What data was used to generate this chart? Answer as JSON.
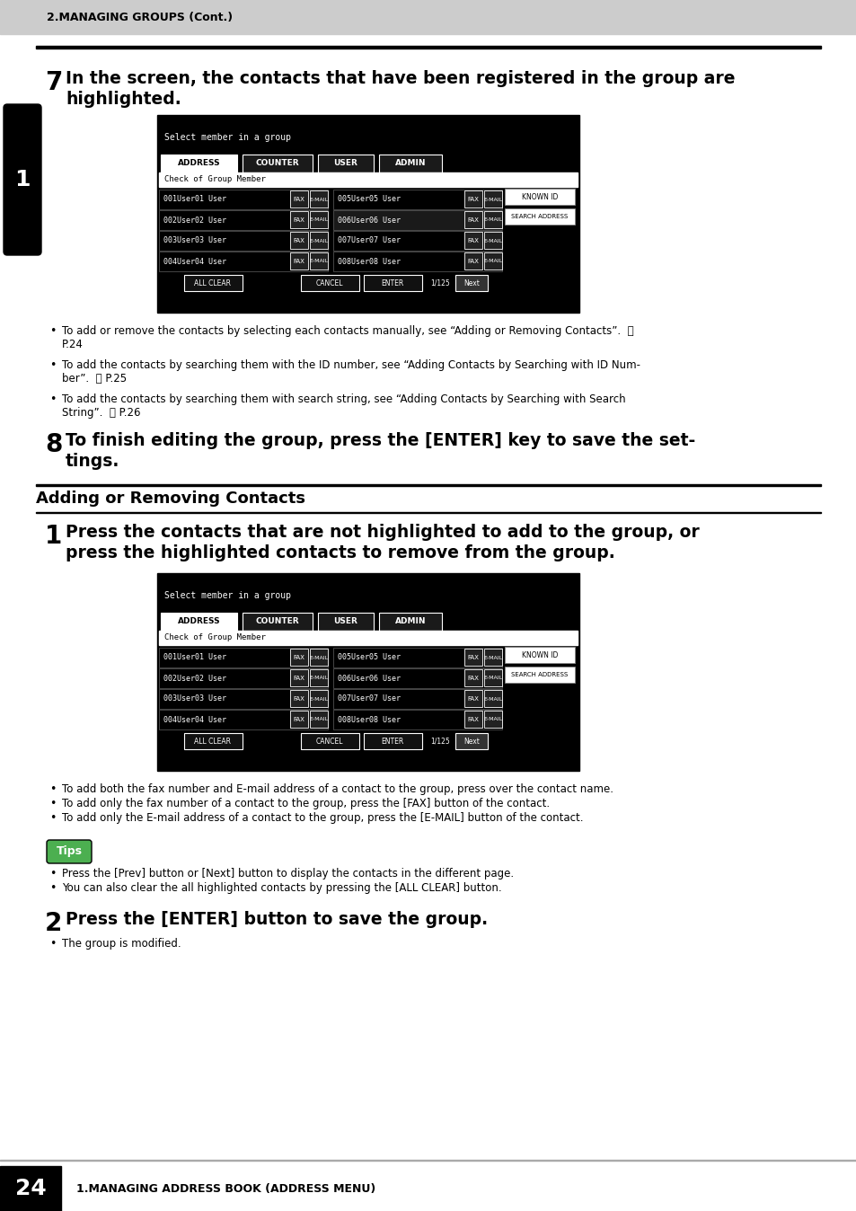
{
  "page_bg": "#ffffff",
  "header_bg": "#c8c8c8",
  "header_text": "2.MANAGING GROUPS (Cont.)",
  "footer_text": "24",
  "footer_subtext": "1.MANAGING ADDRESS BOOK (ADDRESS MENU)",
  "left_tab_text": "1",
  "step7_number": "7",
  "step7_line1": "In the screen, the contacts that have been registered in the group are",
  "step7_line2": "highlighted.",
  "step7_bullets": [
    [
      "To add or remove the contacts by selecting each contacts manually, see “Adding or Removing Contacts”.  ⒥",
      "P.24"
    ],
    [
      "To add the contacts by searching them with the ID number, see “Adding Contacts by Searching with ID Num-",
      "ber”.  ⒥ P.25"
    ],
    [
      "To add the contacts by searching them with search string, see “Adding Contacts by Searching with Search",
      "String”.  ⒥ P.26"
    ]
  ],
  "step8_number": "8",
  "step8_line1": "To finish editing the group, press the [ENTER] key to save the set-",
  "step8_line2": "tings.",
  "adding_section_title": "Adding or Removing Contacts",
  "step1_number": "1",
  "step1_line1": "Press the contacts that are not highlighted to add to the group, or",
  "step1_line2": "press the highlighted contacts to remove from the group.",
  "step1_bullets": [
    "To add both the fax number and E-mail address of a contact to the group, press over the contact name.",
    "To add only the fax number of a contact to the group, press the [FAX] button of the contact.",
    "To add only the E-mail address of a contact to the group, press the [E-MAIL] button of the contact."
  ],
  "tips_bullets": [
    "Press the [Prev] button or [Next] button to display the contacts in the different page.",
    "You can also clear the all highlighted contacts by pressing the [ALL CLEAR] button."
  ],
  "step2_number": "2",
  "step2_text": "Press the [ENTER] button to save the group.",
  "step2_bullets": [
    "The group is modified."
  ],
  "screen_title": "Select member in a group",
  "screen_tab_labels": [
    "ADDRESS",
    "COUNTER",
    "USER",
    "ADMIN"
  ],
  "screen_check_text": "Check of Group Member",
  "screen_users_left": [
    "001User01 User",
    "002User02 User",
    "003User03 User",
    "004User04 User"
  ],
  "screen_users_right": [
    "005User05 User",
    "006User06 User",
    "007User07 User",
    "008User08 User"
  ],
  "screen_page_text": "1/125",
  "screen_right_btns": [
    "KNOWN ID",
    "SEARCH ADDRESS"
  ],
  "tips_label": "Tips"
}
